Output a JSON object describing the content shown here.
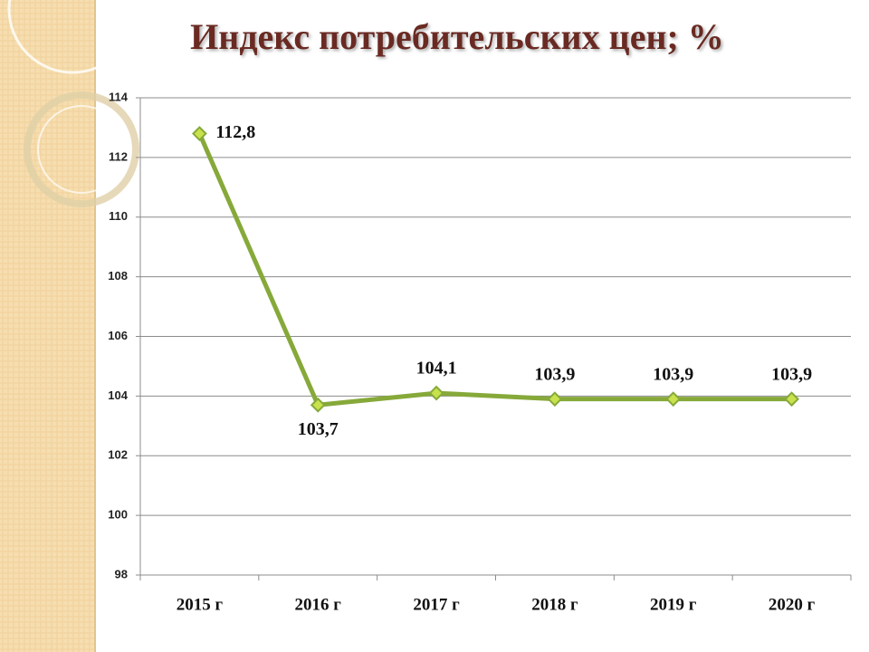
{
  "chart_data": {
    "type": "line",
    "title": "Индекс потребительских цен; %",
    "categories": [
      "2015 г",
      "2016 г",
      "2017 г",
      "2018 г",
      "2019 г",
      "2020 г"
    ],
    "series": [
      {
        "color": "#86a93a",
        "values": [
          112.8,
          103.7,
          104.1,
          103.9,
          103.9,
          103.9
        ],
        "value_labels": [
          "112,8",
          "103,7",
          "104,1",
          "103,9",
          "103,9",
          "103,9"
        ]
      }
    ],
    "ylim": [
      98,
      114
    ],
    "yticks": [
      98,
      100,
      102,
      104,
      106,
      108,
      110,
      112,
      114
    ],
    "grid": true
  }
}
